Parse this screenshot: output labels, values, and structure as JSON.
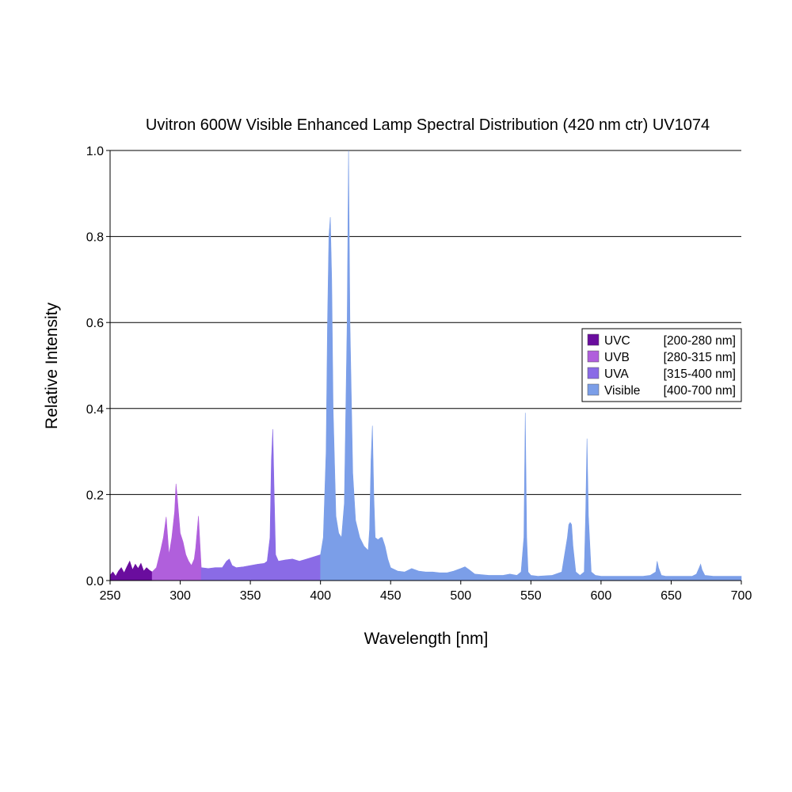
{
  "chart_data": {
    "type": "area",
    "title": "Uvitron 600W Visible Enhanced Lamp Spectral Distribution (420 nm ctr) UV1074",
    "xlabel": "Wavelength [nm]",
    "ylabel": "Relative Intensity",
    "xlim": [
      250,
      700
    ],
    "ylim": [
      0,
      1.0
    ],
    "xticks": [
      250,
      300,
      350,
      400,
      450,
      500,
      550,
      600,
      650,
      700
    ],
    "xtick_labels": [
      "250",
      "300",
      "350",
      "400",
      "450",
      "500",
      "550",
      "600",
      "650",
      "700"
    ],
    "yticks": [
      0,
      0.2,
      0.4,
      0.6,
      0.8,
      1.0
    ],
    "ytick_labels": [
      "0.0",
      "0.2",
      "0.4",
      "0.6",
      "0.8",
      "1.0"
    ],
    "grid": true,
    "legend_position": "right",
    "series": [
      {
        "name": "UVC",
        "range_label": "[200-280 nm]",
        "color": "#6a0d9e",
        "x": [
          250,
          252,
          254,
          256,
          258,
          260,
          262,
          264,
          266,
          268,
          270,
          272,
          274,
          276,
          278,
          280
        ],
        "y": [
          0.012,
          0.02,
          0.01,
          0.022,
          0.03,
          0.018,
          0.032,
          0.045,
          0.025,
          0.038,
          0.028,
          0.04,
          0.022,
          0.03,
          0.024,
          0.02
        ]
      },
      {
        "name": "UVB",
        "range_label": "[280-315 nm]",
        "color": "#b05fdc",
        "x": [
          280,
          283,
          286,
          288,
          290,
          292,
          294,
          296,
          297,
          298,
          300,
          302,
          304,
          306,
          308,
          310,
          311,
          313,
          315
        ],
        "y": [
          0.02,
          0.03,
          0.07,
          0.1,
          0.148,
          0.06,
          0.1,
          0.16,
          0.225,
          0.19,
          0.11,
          0.09,
          0.06,
          0.045,
          0.035,
          0.05,
          0.075,
          0.15,
          0.03
        ]
      },
      {
        "name": "UVA",
        "range_label": "[315-400 nm]",
        "color": "#8a6be6",
        "x": [
          315,
          320,
          325,
          330,
          333,
          335,
          337,
          340,
          345,
          350,
          355,
          360,
          362,
          364,
          365,
          366,
          367,
          368,
          370,
          375,
          380,
          385,
          390,
          395,
          400
        ],
        "y": [
          0.03,
          0.028,
          0.03,
          0.03,
          0.045,
          0.05,
          0.035,
          0.03,
          0.032,
          0.035,
          0.038,
          0.04,
          0.045,
          0.1,
          0.28,
          0.352,
          0.2,
          0.06,
          0.045,
          0.048,
          0.05,
          0.045,
          0.05,
          0.055,
          0.06
        ]
      },
      {
        "name": "Visible",
        "range_label": "[400-700 nm]",
        "color": "#7b9ee8",
        "x": [
          400,
          402,
          404,
          405,
          406,
          407,
          408,
          409,
          411,
          413,
          415,
          417,
          419,
          420,
          421,
          423,
          425,
          428,
          431,
          434,
          435,
          436,
          437,
          438,
          439,
          441,
          443,
          444,
          446,
          448,
          450,
          455,
          460,
          465,
          470,
          475,
          480,
          485,
          490,
          495,
          500,
          503,
          506,
          510,
          520,
          530,
          535,
          540,
          543,
          545,
          546,
          547,
          548,
          550,
          555,
          565,
          572,
          576,
          577,
          578,
          579,
          580,
          582,
          585,
          588,
          589,
          590,
          591,
          593,
          596,
          600,
          610,
          620,
          630,
          635,
          639,
          640,
          641,
          643,
          646,
          655,
          665,
          668,
          670,
          671,
          672,
          674,
          680,
          690,
          700
        ],
        "y": [
          0.06,
          0.1,
          0.3,
          0.6,
          0.8,
          0.845,
          0.7,
          0.4,
          0.15,
          0.11,
          0.1,
          0.18,
          0.6,
          1.0,
          0.6,
          0.25,
          0.14,
          0.1,
          0.08,
          0.07,
          0.12,
          0.28,
          0.36,
          0.2,
          0.1,
          0.095,
          0.1,
          0.1,
          0.08,
          0.05,
          0.03,
          0.022,
          0.02,
          0.028,
          0.022,
          0.02,
          0.02,
          0.018,
          0.018,
          0.022,
          0.028,
          0.032,
          0.025,
          0.015,
          0.012,
          0.012,
          0.015,
          0.012,
          0.02,
          0.1,
          0.39,
          0.1,
          0.02,
          0.012,
          0.01,
          0.012,
          0.02,
          0.1,
          0.13,
          0.135,
          0.13,
          0.08,
          0.02,
          0.012,
          0.02,
          0.15,
          0.33,
          0.15,
          0.02,
          0.012,
          0.01,
          0.01,
          0.01,
          0.01,
          0.012,
          0.02,
          0.045,
          0.03,
          0.012,
          0.01,
          0.01,
          0.01,
          0.015,
          0.03,
          0.038,
          0.025,
          0.012,
          0.01,
          0.01,
          0.01
        ]
      }
    ]
  }
}
